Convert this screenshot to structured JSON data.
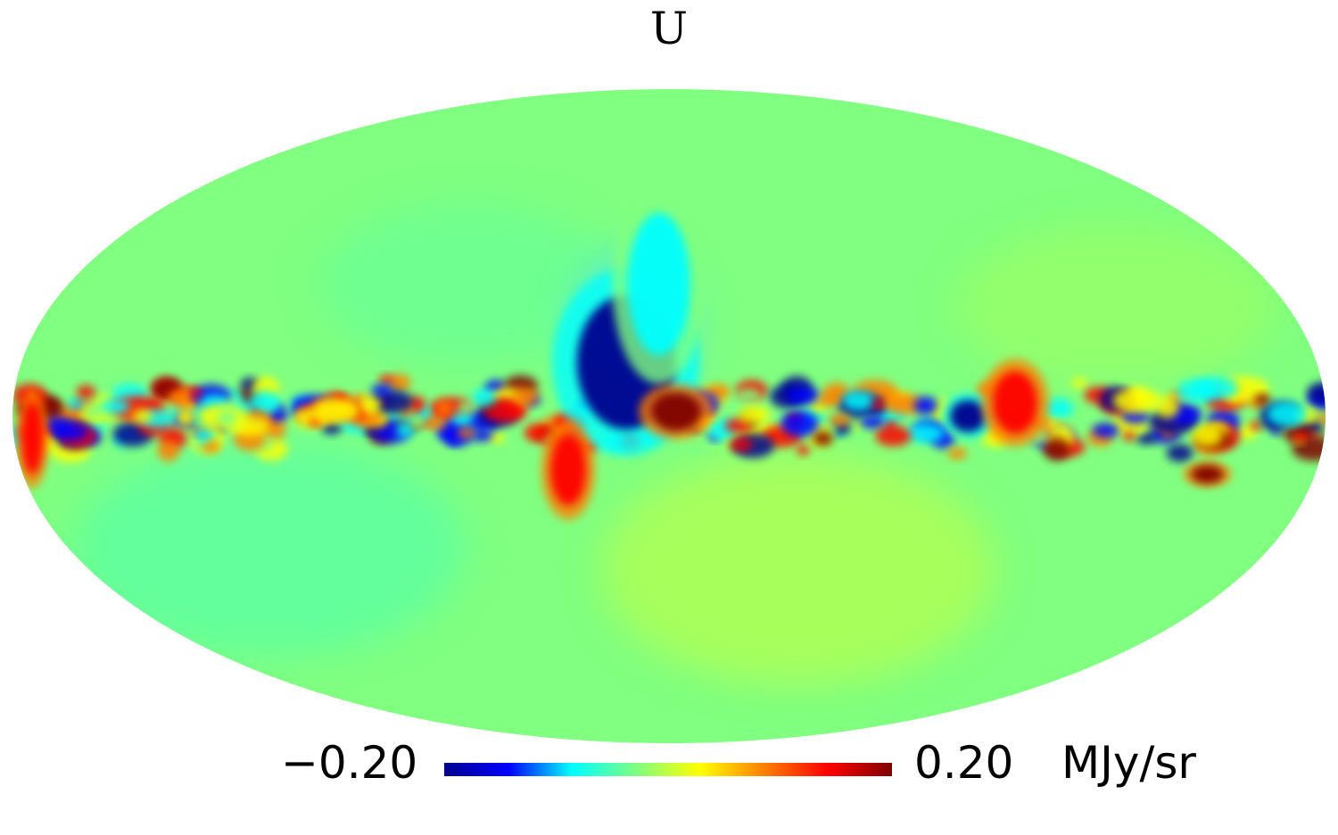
{
  "map": {
    "title": "U",
    "projection": "mollweide",
    "colormap": [
      "#00008f",
      "#0000ff",
      "#00ffff",
      "#80ff80",
      "#ffff00",
      "#ff8000",
      "#ff0000",
      "#800000"
    ],
    "features": [
      {
        "name": "galactic-plane-band",
        "kind": "band",
        "lon": [
          -180,
          180
        ],
        "lat_center": -0.5,
        "lat_halfwidth": 3.5,
        "value_range": [
          -0.2,
          0.2
        ]
      },
      {
        "name": "north-polar-spur-blue",
        "kind": "blob",
        "lon": 12,
        "lat": 12,
        "value": -0.2
      },
      {
        "name": "north-polar-spur-extension",
        "kind": "blob",
        "lon": 3,
        "lat": 30,
        "value": -0.1
      },
      {
        "name": "center-red-clump",
        "kind": "blob",
        "lon": -2,
        "lat": 1,
        "value": 0.2
      },
      {
        "name": "south-red-feature",
        "kind": "blob",
        "lon": 28,
        "lat": -12,
        "value": 0.15
      },
      {
        "name": "east-blue-clump",
        "kind": "blob",
        "lon": -82,
        "lat": 0,
        "value": -0.2
      },
      {
        "name": "east-red-clump",
        "kind": "blob",
        "lon": -95,
        "lat": 3,
        "value": 0.15
      },
      {
        "name": "southwest-red-spot",
        "kind": "blob",
        "lon": -150,
        "lat": -13,
        "value": 0.2
      },
      {
        "name": "west-red-edge",
        "kind": "blob",
        "lon": 175,
        "lat": -5,
        "value": 0.15
      }
    ]
  },
  "colorbar": {
    "min_label": "−0.20",
    "max_label": "0.20",
    "unit": "MJy/sr",
    "min": -0.2,
    "max": 0.2
  }
}
